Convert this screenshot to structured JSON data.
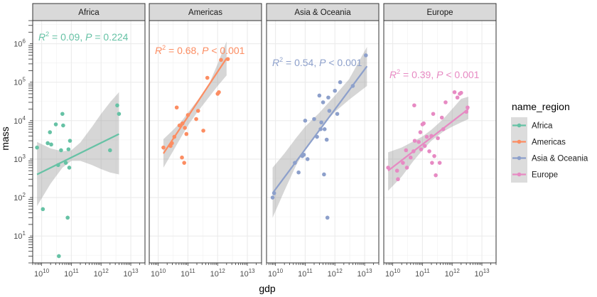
{
  "chart_data": {
    "type": "scatter",
    "xlabel": "gdp",
    "ylabel": "mass",
    "x_scale": "log10",
    "y_scale": "log10",
    "xlim": [
      5000000000.0,
      30000000000000.0
    ],
    "ylim": [
      2,
      4000000.0
    ],
    "x_ticks": [
      {
        "value": 10000000000.0,
        "base": "10",
        "exp": "10"
      },
      {
        "value": 100000000000.0,
        "base": "10",
        "exp": "11"
      },
      {
        "value": 1000000000000.0,
        "base": "10",
        "exp": "12"
      },
      {
        "value": 10000000000000.0,
        "base": "10",
        "exp": "13"
      }
    ],
    "y_ticks": [
      {
        "value": 10,
        "base": "10",
        "exp": "1"
      },
      {
        "value": 100,
        "base": "10",
        "exp": "2"
      },
      {
        "value": 1000,
        "base": "10",
        "exp": "3"
      },
      {
        "value": 10000,
        "base": "10",
        "exp": "4"
      },
      {
        "value": 100000,
        "base": "10",
        "exp": "5"
      },
      {
        "value": 1000000,
        "base": "10",
        "exp": "6"
      }
    ],
    "grid": true,
    "legend": {
      "title": "name_region",
      "placement": "right"
    },
    "annotation_format": {
      "r2_label": "R",
      "r2_sup": "2",
      "p_label": "P"
    },
    "series": [
      {
        "name": "Africa",
        "color": "#66c2a5",
        "annotation": {
          "r2": "= 0.09, ",
          "p": " = 0.224"
        },
        "fit": {
          "x": [
            7000000000.0,
            4000000000000.0
          ],
          "y": [
            400,
            4500
          ]
        },
        "band": {
          "x": [
            7000000000.0,
            20000000000.0,
            50000000000.0,
            100000000000.0,
            200000000000.0,
            500000000000.0,
            1000000000000.0,
            2000000000000.0,
            4000000000000.0
          ],
          "lower": [
            60,
            230,
            600,
            900,
            900,
            700,
            550,
            450,
            400
          ],
          "upper": [
            2800,
            1900,
            1600,
            1700,
            2700,
            7000,
            15000,
            30000,
            55000
          ]
        },
        "points": [
          [
            7000000000.0,
            2000
          ],
          [
            11000000000.0,
            50
          ],
          [
            16000000000.0,
            2600
          ],
          [
            19000000000.0,
            5000
          ],
          [
            21000000000.0,
            2400
          ],
          [
            30000000000.0,
            8000
          ],
          [
            36000000000.0,
            700
          ],
          [
            38000000000.0,
            3
          ],
          [
            45000000000.0,
            1700
          ],
          [
            50000000000.0,
            15000
          ],
          [
            53000000000.0,
            7500
          ],
          [
            65000000000.0,
            800
          ],
          [
            75000000000.0,
            30
          ],
          [
            80000000000.0,
            1800
          ],
          [
            90000000000.0,
            3000
          ],
          [
            85000000000.0,
            600
          ],
          [
            2000000000000.0,
            1700
          ],
          [
            3500000000000.0,
            25000
          ],
          [
            4000000000000.0,
            15000
          ]
        ]
      },
      {
        "name": "Americas",
        "color": "#fc8d62",
        "annotation": {
          "r2": "= 0.68, ",
          "p": " < 0.001"
        },
        "fit": {
          "x": [
            15000000000.0,
            2000000000000.0
          ],
          "y": [
            1400,
            420000
          ]
        },
        "band": {
          "x": [
            15000000000.0,
            30000000000.0,
            60000000000.0,
            100000000000.0,
            200000000000.0,
            500000000000.0,
            1000000000000.0,
            2000000000000.0
          ],
          "lower": [
            600,
            1500,
            3800,
            7500,
            16000,
            40000,
            80000,
            150000
          ],
          "upper": [
            3300,
            5500,
            9500,
            16000,
            32000,
            85000,
            300000,
            1150000
          ]
        },
        "points": [
          [
            15000000000.0,
            2000
          ],
          [
            26000000000.0,
            2200
          ],
          [
            29000000000.0,
            2600
          ],
          [
            35000000000.0,
            3800
          ],
          [
            42000000000.0,
            22000
          ],
          [
            52000000000.0,
            7500
          ],
          [
            63000000000.0,
            1100
          ],
          [
            66000000000.0,
            8500
          ],
          [
            75000000000.0,
            800
          ],
          [
            79000000000.0,
            6500
          ],
          [
            89000000000.0,
            4500
          ],
          [
            100000000000.0,
            14000
          ],
          [
            190000000000.0,
            11000
          ],
          [
            220000000000.0,
            18000
          ],
          [
            330000000000.0,
            5500
          ],
          [
            450000000000.0,
            130000
          ],
          [
            1000000000000.0,
            50000
          ],
          [
            1100000000000.0,
            55000
          ],
          [
            1300000000000.0,
            380000
          ],
          [
            2200000000000.0,
            400000
          ]
        ]
      },
      {
        "name": "Asia & Oceania",
        "color": "#8da0cb",
        "annotation": {
          "r2": "= 0.54, ",
          "p": " < 0.001"
        },
        "fit": {
          "x": [
            8000000000.0,
            12000000000000.0
          ],
          "y": [
            130,
            260000
          ]
        },
        "band": {
          "x": [
            8000000000.0,
            20000000000.0,
            50000000000.0,
            100000000000.0,
            300000000000.0,
            1000000000000.0,
            3000000000000.0,
            12000000000000.0
          ],
          "lower": [
            30,
            150,
            700,
            1800,
            6000,
            17000,
            35000,
            80000
          ],
          "upper": [
            600,
            1400,
            3600,
            7000,
            16000,
            45000,
            120000,
            830000
          ]
        },
        "points": [
          [
            8000000000.0,
            100
          ],
          [
            9000000000.0,
            130
          ],
          [
            45000000000.0,
            800
          ],
          [
            60000000000.0,
            450
          ],
          [
            80000000000.0,
            1200
          ],
          [
            90000000000.0,
            1300
          ],
          [
            100000000000.0,
            10000
          ],
          [
            120000000000.0,
            1000
          ],
          [
            200000000000.0,
            11000
          ],
          [
            250000000000.0,
            3800
          ],
          [
            300000000000.0,
            45000
          ],
          [
            330000000000.0,
            6000
          ],
          [
            350000000000.0,
            9000
          ],
          [
            400000000000.0,
            30000
          ],
          [
            430000000000.0,
            400
          ],
          [
            450000000000.0,
            6000
          ],
          [
            530000000000.0,
            3200
          ],
          [
            560000000000.0,
            30
          ],
          [
            600000000000.0,
            40000
          ],
          [
            650000000000.0,
            18000
          ],
          [
            1000000000000.0,
            60000
          ],
          [
            1200000000000.0,
            15000
          ],
          [
            1500000000000.0,
            100000
          ],
          [
            4000000000000.0,
            80000
          ],
          [
            11000000000000.0,
            500000
          ]
        ]
      },
      {
        "name": "Europe",
        "color": "#e78ac3",
        "annotation": {
          "r2": "= 0.39, ",
          "p": " < 0.001"
        },
        "fit": {
          "x": [
            7000000000.0,
            3500000000000.0
          ],
          "y": [
            500,
            20000
          ]
        },
        "band": {
          "x": [
            7000000000.0,
            20000000000.0,
            50000000000.0,
            100000000000.0,
            200000000000.0,
            500000000000.0,
            1000000000000.0,
            2000000000000.0,
            3500000000000.0
          ],
          "lower": [
            150,
            350,
            900,
            1700,
            3000,
            5200,
            7000,
            9000,
            11000
          ],
          "upper": [
            1500,
            2000,
            2900,
            3900,
            5800,
            11000,
            20000,
            37000,
            42000
          ]
        },
        "points": [
          [
            7000000000.0,
            600
          ],
          [
            14000000000.0,
            500
          ],
          [
            15000000000.0,
            300
          ],
          [
            22000000000.0,
            800
          ],
          [
            28000000000.0,
            1700
          ],
          [
            30000000000.0,
            600
          ],
          [
            40000000000.0,
            1100
          ],
          [
            50000000000.0,
            1600
          ],
          [
            53000000000.0,
            25000
          ],
          [
            55000000000.0,
            3000
          ],
          [
            75000000000.0,
            2800
          ],
          [
            85000000000.0,
            5000
          ],
          [
            90000000000.0,
            1800
          ],
          [
            100000000000.0,
            8000
          ],
          [
            110000000000.0,
            8500
          ],
          [
            120000000000.0,
            2200
          ],
          [
            140000000000.0,
            3800
          ],
          [
            170000000000.0,
            1600
          ],
          [
            200000000000.0,
            4000
          ],
          [
            210000000000.0,
            800
          ],
          [
            230000000000.0,
            15000
          ],
          [
            250000000000.0,
            1200
          ],
          [
            280000000000.0,
            380
          ],
          [
            330000000000.0,
            3500
          ],
          [
            380000000000.0,
            800
          ],
          [
            450000000000.0,
            12000
          ],
          [
            500000000000.0,
            6000
          ],
          [
            600000000000.0,
            30000
          ],
          [
            1200000000000.0,
            55000
          ],
          [
            1500000000000.0,
            40000
          ],
          [
            1800000000000.0,
            50000
          ],
          [
            2000000000000.0,
            53000
          ],
          [
            3000000000000.0,
            17000
          ],
          [
            3300000000000.0,
            22000
          ]
        ]
      }
    ]
  }
}
